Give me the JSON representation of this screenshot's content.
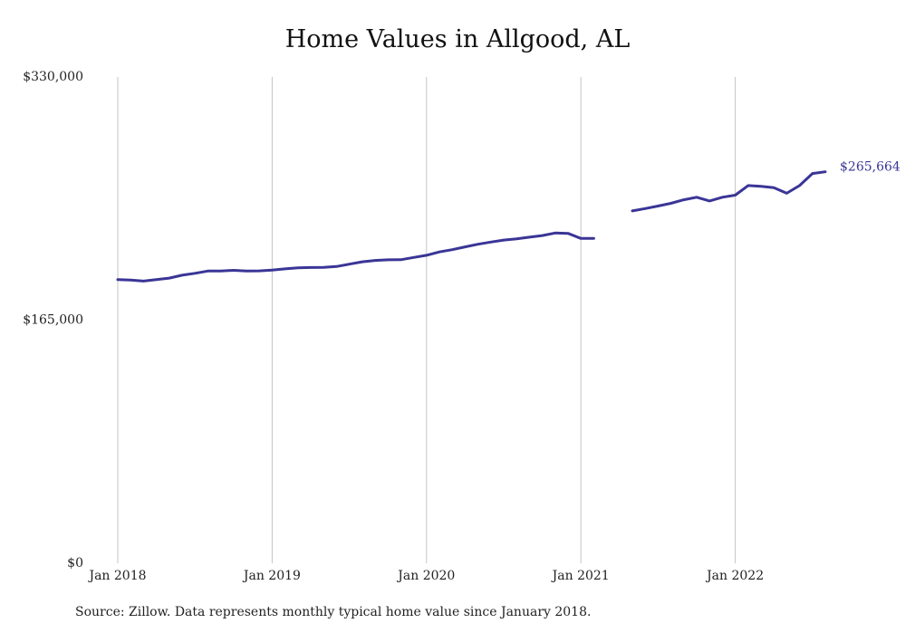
{
  "chart_data": {
    "type": "line",
    "title": "Home Values in Allgood, AL",
    "xlabel": "",
    "ylabel": "",
    "x_tick_labels": [
      "Jan 2018",
      "Jan 2019",
      "Jan 2020",
      "Jan 2021",
      "Jan 2022"
    ],
    "y_tick_labels": [
      "$0",
      "$165,000",
      "$330,000"
    ],
    "ylim": [
      0,
      330000
    ],
    "x_range": [
      "2018-01",
      "2022-05"
    ],
    "grid": {
      "vertical": true,
      "horizontal": false
    },
    "end_label": "$265,664",
    "line_color": "#3a3596",
    "series": [
      {
        "segments": [
          [
            [
              "2018-01",
              192500
            ],
            [
              "2018-02",
              192200
            ],
            [
              "2018-03",
              191500
            ],
            [
              "2018-04",
              192500
            ],
            [
              "2018-05",
              193500
            ],
            [
              "2018-06",
              195500
            ],
            [
              "2018-07",
              196800
            ],
            [
              "2018-08",
              198300
            ],
            [
              "2018-09",
              198300
            ],
            [
              "2018-10",
              198800
            ],
            [
              "2018-11",
              198300
            ],
            [
              "2018-12",
              198400
            ],
            [
              "2019-01",
              199000
            ],
            [
              "2019-02",
              199800
            ],
            [
              "2019-03",
              200500
            ],
            [
              "2019-04",
              200700
            ],
            [
              "2019-05",
              200800
            ],
            [
              "2019-06",
              201400
            ],
            [
              "2019-07",
              203000
            ],
            [
              "2019-08",
              204600
            ],
            [
              "2019-09",
              205500
            ],
            [
              "2019-10",
              205900
            ],
            [
              "2019-11",
              206000
            ],
            [
              "2019-12",
              207500
            ],
            [
              "2020-01",
              209000
            ],
            [
              "2020-02",
              211300
            ],
            [
              "2020-03",
              212800
            ],
            [
              "2020-04",
              214700
            ],
            [
              "2020-05",
              216500
            ],
            [
              "2020-06",
              218000
            ],
            [
              "2020-07",
              219300
            ],
            [
              "2020-08",
              220200
            ],
            [
              "2020-09",
              221300
            ],
            [
              "2020-10",
              222400
            ],
            [
              "2020-11",
              224100
            ],
            [
              "2020-12",
              223900
            ],
            [
              "2021-01",
              220400
            ],
            [
              "2021-02",
              220400
            ]
          ],
          [
            [
              "2021-05",
              239100
            ],
            [
              "2021-06",
              240700
            ],
            [
              "2021-07",
              242400
            ],
            [
              "2021-08",
              244300
            ],
            [
              "2021-09",
              246700
            ],
            [
              "2021-10",
              248400
            ],
            [
              "2021-11",
              245900
            ],
            [
              "2021-12",
              248400
            ],
            [
              "2022-01",
              249800
            ],
            [
              "2022-02",
              256300
            ],
            [
              "2022-03",
              255800
            ],
            [
              "2022-04",
              254900
            ],
            [
              "2022-05",
              251100
            ],
            [
              "2022-06",
              256300
            ],
            [
              "2022-07",
              264500
            ],
            [
              "2022-08",
              265664
            ]
          ]
        ]
      }
    ]
  },
  "footer": {
    "source": "Source: Zillow. Data represents monthly typical home value since January 2018."
  }
}
